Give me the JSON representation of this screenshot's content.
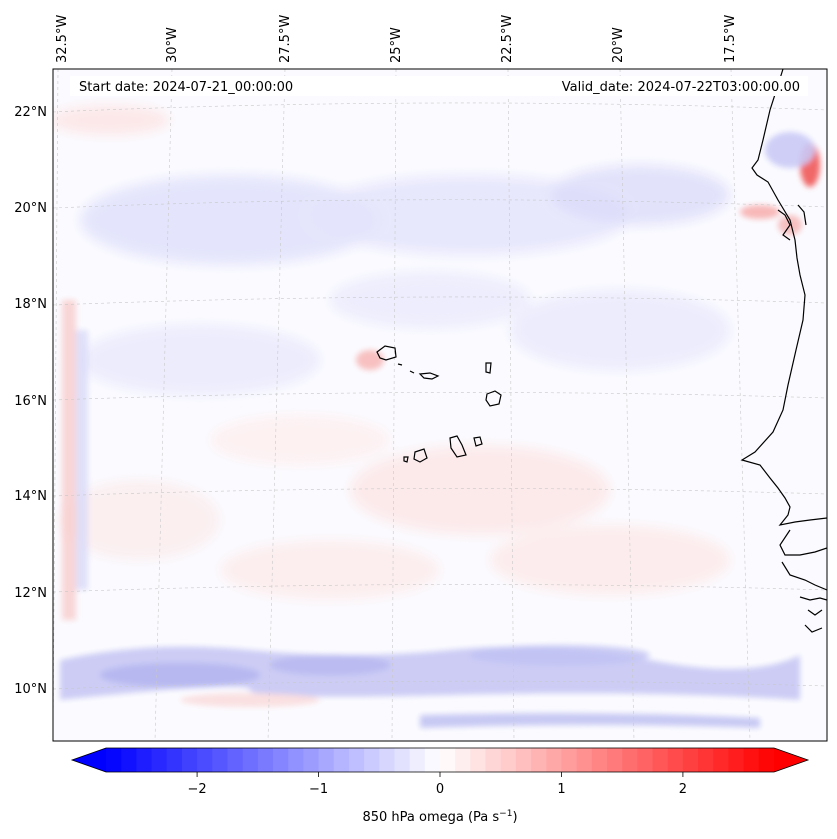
{
  "header": {
    "start_date": "Start date: 2024-07-21_00:00:00",
    "valid_date": "Valid_date: 2024-07-22T03:00:00.00"
  },
  "map": {
    "projection": "lambert-conformal",
    "lon_labels": [
      "32.5°W",
      "30°W",
      "27.5°W",
      "25°W",
      "22.5°W",
      "20°W",
      "17.5°W"
    ],
    "lat_labels": [
      "22°N",
      "20°N",
      "18°N",
      "16°N",
      "14°N",
      "12°N",
      "10°N"
    ],
    "field": "850 hPa omega",
    "features": [
      "Cape Verde islands",
      "West African coastline"
    ],
    "gridlines": true
  },
  "colorbar": {
    "label": "850 hPa omega (Pa s",
    "label_sup": "−1",
    "label_close": ")",
    "ticks": [
      "−2",
      "−1",
      "0",
      "1",
      "2"
    ],
    "tick_values": [
      -2,
      -1,
      0,
      1,
      2
    ],
    "range": [
      -2.75,
      2.75
    ],
    "cmap": "bwr",
    "colors": {
      "low": "#0000ff",
      "mid": "#ffffff",
      "high": "#ff0000"
    }
  }
}
